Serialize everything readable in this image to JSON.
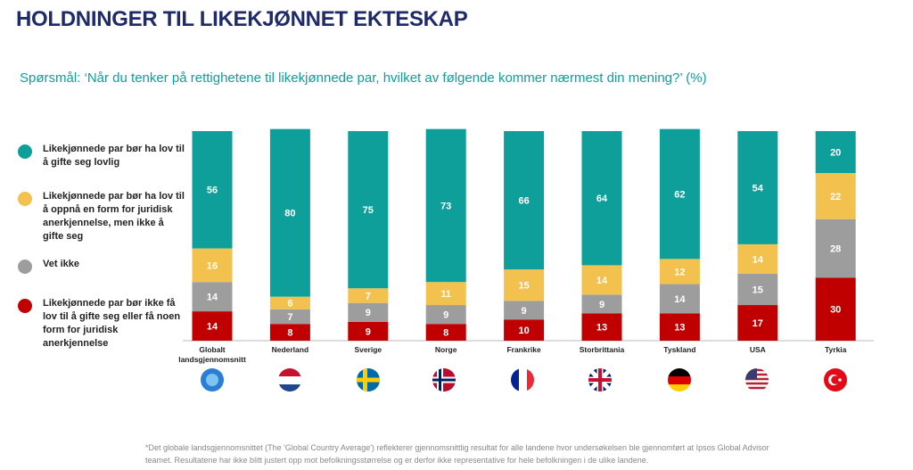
{
  "chart_data": {
    "type": "stacked_bar",
    "title": "HOLDNINGER TIL LIKEKJØNNET EKTESKAP",
    "subtitle": "Spørsmål: ‘Når du tenker på rettighetene til likekjønnede par, hvilket av følgende kommer nærmest din mening?’ (%)",
    "categories": [
      "Globalt landsgjennomsnitt",
      "Nederland",
      "Sverige",
      "Norge",
      "Frankrike",
      "Storbrittania",
      "Tyskland",
      "USA",
      "Tyrkia"
    ],
    "ylim": [
      0,
      100
    ],
    "series": [
      {
        "name": "Likekjønnede par bør ha lov til å gifte seg lovlig",
        "color": "#0e9f9b",
        "values": [
          56,
          80,
          75,
          73,
          66,
          64,
          62,
          54,
          20
        ]
      },
      {
        "name": "Likekjønnede par bør ha lov til å oppnå en form for juridisk anerkjennelse, men ikke å gifte seg",
        "color": "#f2c14e",
        "values": [
          16,
          6,
          7,
          11,
          15,
          14,
          12,
          14,
          22
        ]
      },
      {
        "name": "Vet ikke",
        "color": "#9d9d9d",
        "values": [
          14,
          7,
          9,
          9,
          9,
          9,
          14,
          15,
          28
        ]
      },
      {
        "name": "Likekjønnede par bør ikke få lov til å gifte seg eller få noen form for juridisk anerkjennelse",
        "color": "#c00000",
        "values": [
          14,
          8,
          9,
          8,
          10,
          13,
          13,
          17,
          30
        ]
      }
    ]
  },
  "footnote": "*Det globale landsgjennomsnittet (The 'Global Country Average') reflekterer gjennomsnittlig resultat for alle landene hvor undersøkelsen ble gjennomført at Ipsos Global Advisor teamet. Resultatene har ikke blitt justert opp mot befolkningsstørrelse og er derfor ikke representative for hele befolkningen i de ulike landene."
}
